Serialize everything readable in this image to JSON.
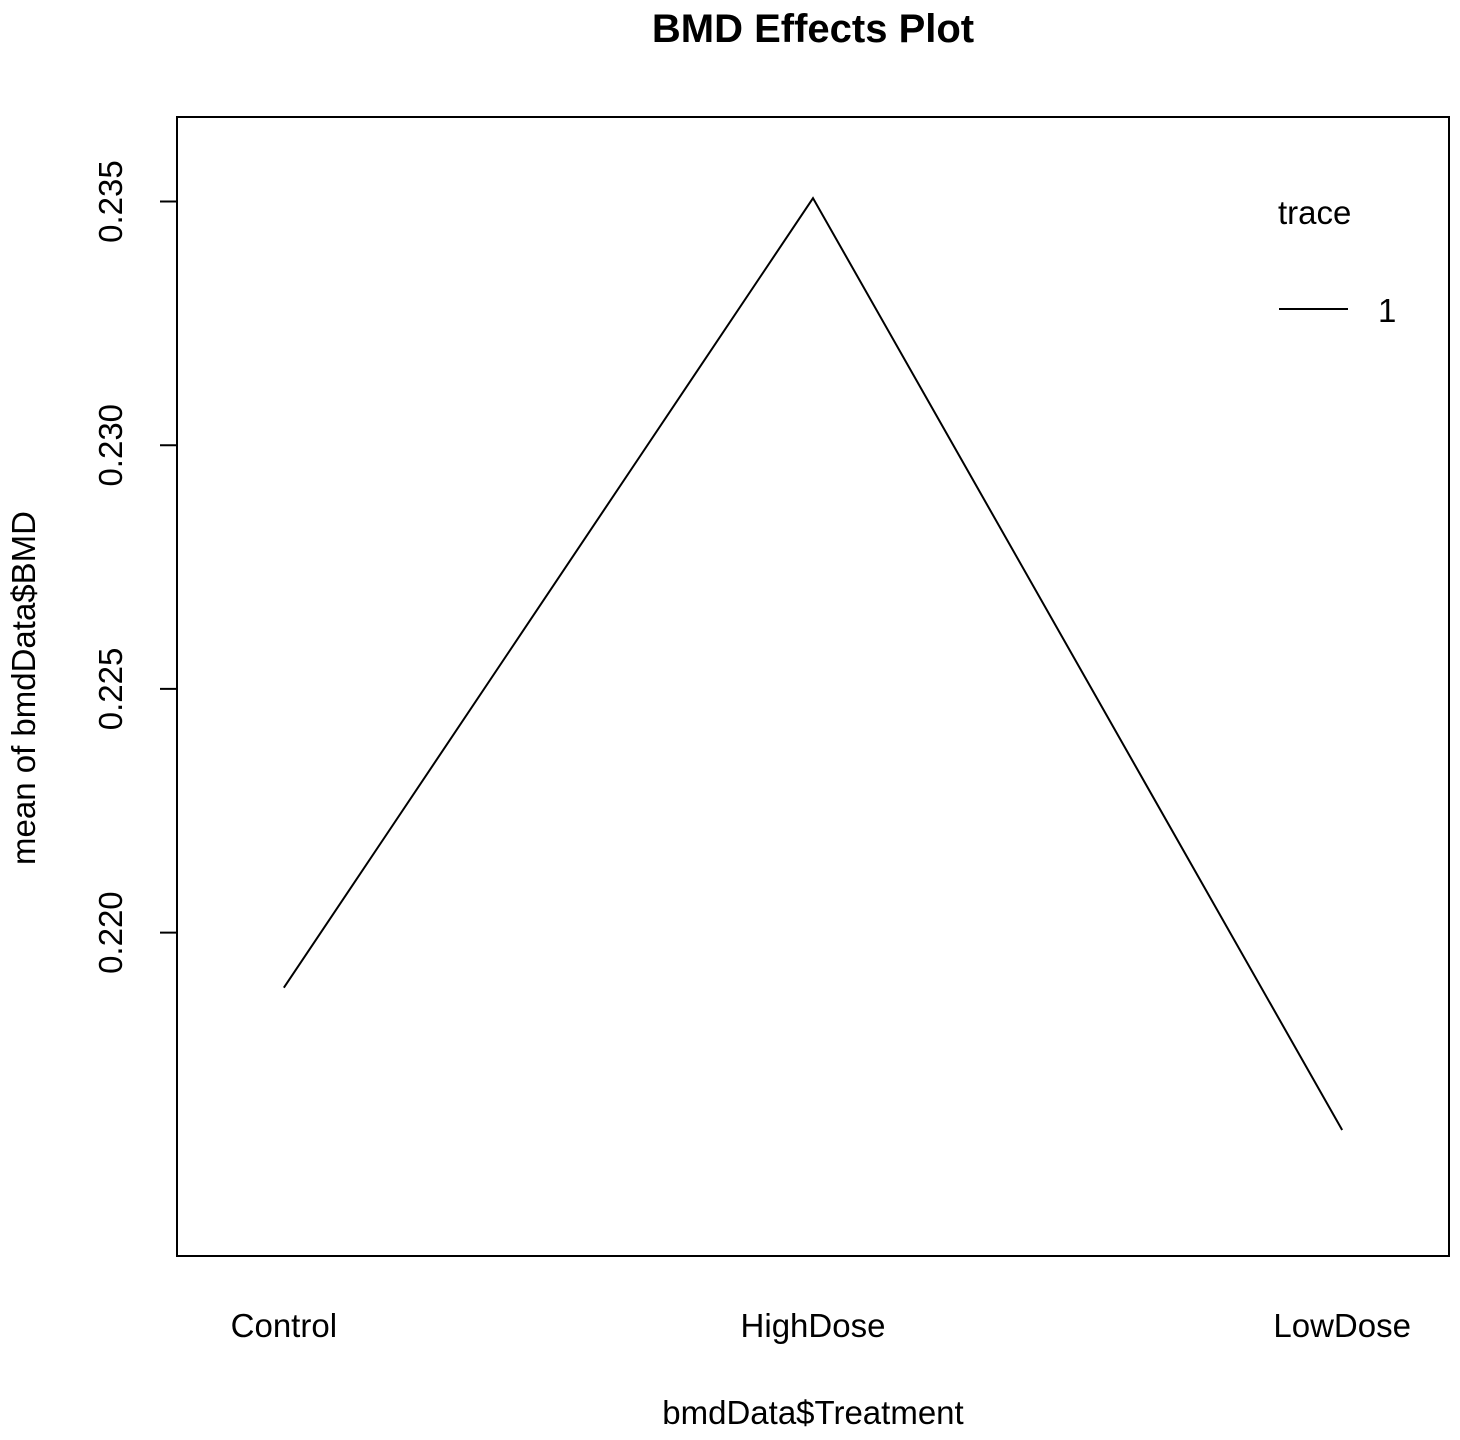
{
  "chart_data": {
    "type": "line",
    "title": "BMD Effects Plot",
    "xlabel": "bmdData$Treatment",
    "ylabel": "mean of  bmdData$BMD",
    "categories": [
      "Control",
      "HighDose",
      "LowDose"
    ],
    "series": [
      {
        "name": "1",
        "values": [
          0.21887,
          0.23507,
          0.21595
        ]
      }
    ],
    "ylim": [
      0.2143,
      0.2358
    ],
    "yticks": [
      0.22,
      0.225,
      0.23,
      0.235
    ],
    "ytick_labels": [
      "0.220",
      "0.225",
      "0.230",
      "0.235"
    ],
    "legend": {
      "title": "trace",
      "placement": "top-right"
    },
    "grid": false,
    "colors": {
      "line": "#000000",
      "frame": "#000000"
    }
  }
}
